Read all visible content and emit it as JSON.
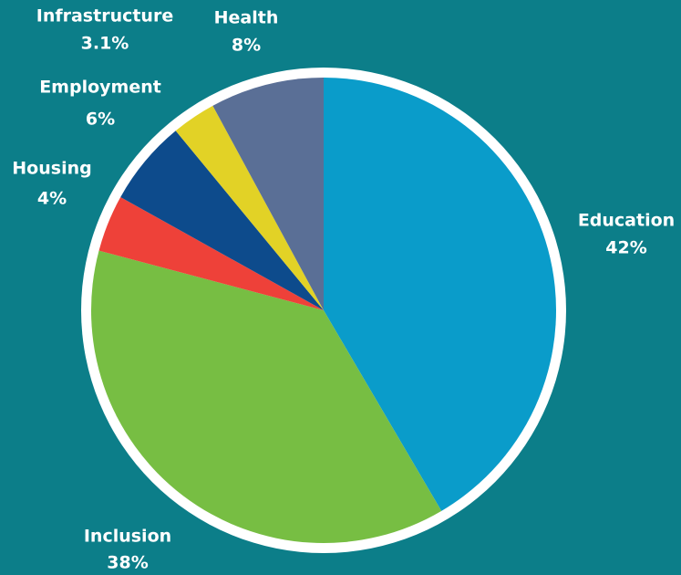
{
  "chart_data": {
    "type": "pie",
    "categories": [
      "Education",
      "Inclusion",
      "Housing",
      "Employment",
      "Infrastructure",
      "Health"
    ],
    "values": [
      42,
      38,
      4,
      6,
      3.1,
      8
    ],
    "value_labels": [
      "42%",
      "38%",
      "4%",
      "6%",
      "3.1%",
      "8%"
    ],
    "colors": [
      "#0a9cca",
      "#77be43",
      "#ee4139",
      "#0d4b8c",
      "#e2d226",
      "#5a6f96"
    ]
  }
}
